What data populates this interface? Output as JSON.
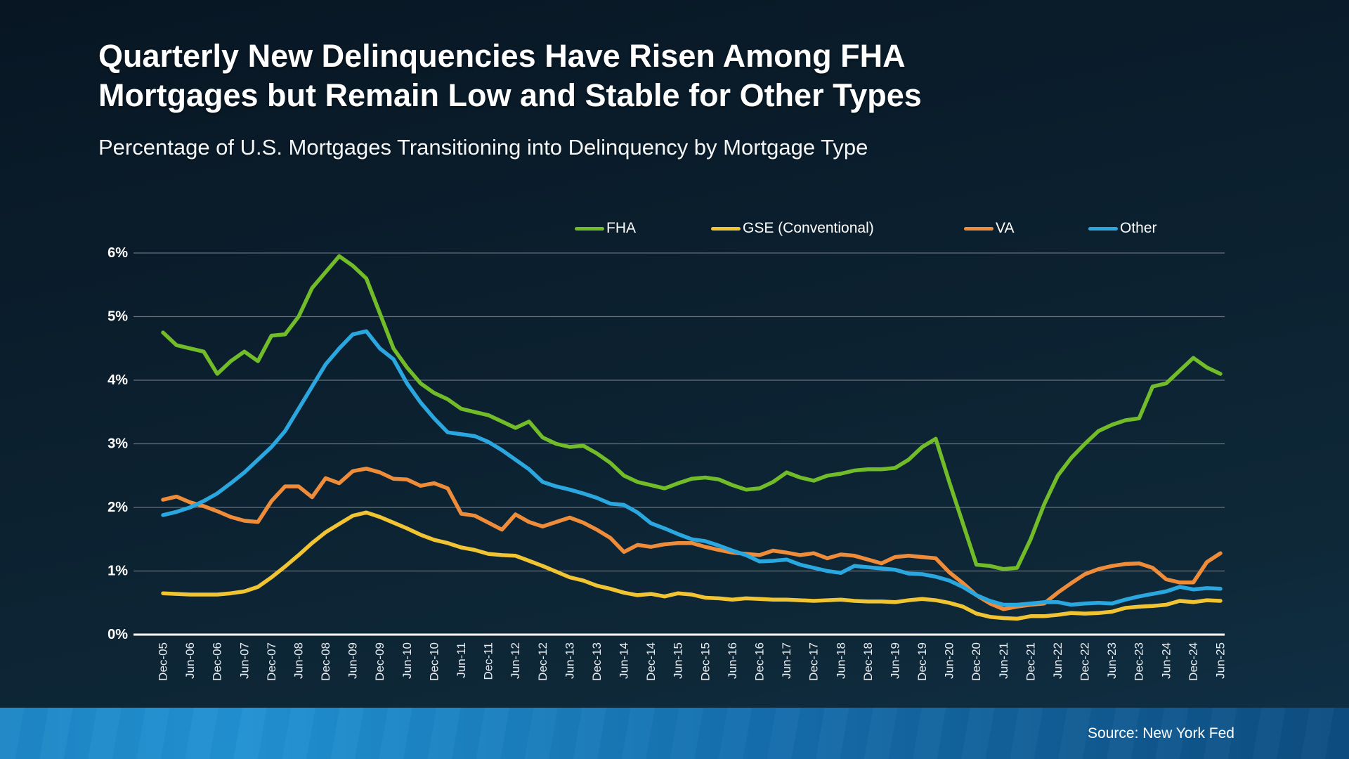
{
  "header": {
    "title_line1": "Quarterly New Delinquencies Have Risen Among FHA",
    "title_line2": "Mortgages but Remain Low and Stable for Other Types",
    "subtitle": "Percentage of U.S. Mortgages Transitioning into Delinquency by Mortgage Type"
  },
  "footer": {
    "source_label": "Source: New York Fed"
  },
  "colors": {
    "background_top": "#081623",
    "background_bottom": "#103047",
    "gridline": "#8b929b",
    "zero_axis": "#ffffff",
    "x_tick_text": "#e9edf1",
    "y_tick_text": "#ffffff",
    "footer_bar_left": "#2191d2",
    "footer_bar_right": "#0d4d80"
  },
  "chart_data": {
    "type": "line",
    "title": "Percentage of U.S. Mortgages Transitioning into Delinquency by Mortgage Type",
    "xlabel": "",
    "ylabel": "",
    "ylim": [
      0,
      6
    ],
    "y_ticks": [
      0,
      1,
      2,
      3,
      4,
      5,
      6
    ],
    "y_tick_suffix": "%",
    "grid": true,
    "legend_position": "top",
    "x_frequency": "quarterly",
    "x_start": "Dec-05",
    "x_end": "Jun-25",
    "x_tick_labels": [
      "Dec-05",
      "Jun-06",
      "Dec-06",
      "Jun-07",
      "Dec-07",
      "Jun-08",
      "Dec-08",
      "Jun-09",
      "Dec-09",
      "Jun-10",
      "Dec-10",
      "Jun-11",
      "Dec-11",
      "Jun-12",
      "Dec-12",
      "Jun-13",
      "Dec-13",
      "Jun-14",
      "Dec-14",
      "Jun-15",
      "Dec-15",
      "Jun-16",
      "Dec-16",
      "Jun-17",
      "Dec-17",
      "Jun-18",
      "Dec-18",
      "Jun-19",
      "Dec-19",
      "Jun-20",
      "Dec-20",
      "Jun-21",
      "Dec-21",
      "Jun-22",
      "Dec-22",
      "Jun-23",
      "Dec-23",
      "Jun-24",
      "Dec-24",
      "Jun-25"
    ],
    "series": [
      {
        "name": "FHA",
        "color": "#71bc28",
        "values": [
          4.75,
          4.55,
          4.5,
          4.45,
          4.1,
          4.3,
          4.45,
          4.3,
          4.7,
          4.72,
          5.0,
          5.45,
          5.7,
          5.95,
          5.8,
          5.6,
          5.05,
          4.5,
          4.2,
          3.95,
          3.8,
          3.7,
          3.55,
          3.5,
          3.45,
          3.35,
          3.25,
          3.35,
          3.1,
          3.0,
          2.95,
          2.97,
          2.85,
          2.7,
          2.5,
          2.4,
          2.35,
          2.3,
          2.38,
          2.45,
          2.47,
          2.44,
          2.35,
          2.28,
          2.3,
          2.4,
          2.55,
          2.47,
          2.42,
          2.5,
          2.53,
          2.58,
          2.6,
          2.6,
          2.62,
          2.75,
          2.95,
          3.08,
          2.4,
          1.75,
          1.1,
          1.08,
          1.03,
          1.05,
          1.5,
          2.05,
          2.5,
          2.78,
          3.0,
          3.2,
          3.3,
          3.37,
          3.4,
          3.9,
          3.95,
          4.15,
          4.35,
          4.2,
          4.1
        ]
      },
      {
        "name": "GSE (Conventional)",
        "color": "#f0c432",
        "values": [
          0.65,
          0.64,
          0.63,
          0.63,
          0.63,
          0.65,
          0.68,
          0.75,
          0.9,
          1.07,
          1.25,
          1.44,
          1.61,
          1.74,
          1.87,
          1.92,
          1.85,
          1.76,
          1.67,
          1.57,
          1.49,
          1.44,
          1.37,
          1.33,
          1.27,
          1.25,
          1.24,
          1.16,
          1.08,
          0.99,
          0.9,
          0.85,
          0.77,
          0.72,
          0.66,
          0.62,
          0.64,
          0.6,
          0.65,
          0.63,
          0.58,
          0.57,
          0.55,
          0.57,
          0.56,
          0.55,
          0.55,
          0.54,
          0.53,
          0.54,
          0.55,
          0.53,
          0.52,
          0.52,
          0.51,
          0.54,
          0.56,
          0.54,
          0.5,
          0.44,
          0.33,
          0.28,
          0.26,
          0.25,
          0.29,
          0.29,
          0.31,
          0.34,
          0.33,
          0.34,
          0.36,
          0.42,
          0.44,
          0.45,
          0.47,
          0.53,
          0.51,
          0.54,
          0.53
        ]
      },
      {
        "name": "VA",
        "color": "#ee8c3a",
        "values": [
          2.12,
          2.17,
          2.08,
          2.02,
          1.94,
          1.85,
          1.79,
          1.77,
          2.1,
          2.33,
          2.33,
          2.16,
          2.46,
          2.38,
          2.57,
          2.61,
          2.55,
          2.45,
          2.44,
          2.34,
          2.38,
          2.3,
          1.9,
          1.87,
          1.76,
          1.65,
          1.89,
          1.77,
          1.7,
          1.77,
          1.84,
          1.76,
          1.65,
          1.52,
          1.3,
          1.41,
          1.38,
          1.42,
          1.44,
          1.44,
          1.38,
          1.33,
          1.29,
          1.27,
          1.25,
          1.32,
          1.29,
          1.25,
          1.28,
          1.2,
          1.26,
          1.24,
          1.18,
          1.12,
          1.22,
          1.24,
          1.22,
          1.2,
          0.98,
          0.81,
          0.62,
          0.49,
          0.4,
          0.44,
          0.47,
          0.49,
          0.66,
          0.81,
          0.95,
          1.03,
          1.08,
          1.11,
          1.12,
          1.05,
          0.87,
          0.82,
          0.82,
          1.14,
          1.28
        ]
      },
      {
        "name": "Other",
        "color": "#2ba7e0",
        "values": [
          1.88,
          1.93,
          2.0,
          2.1,
          2.22,
          2.38,
          2.55,
          2.75,
          2.95,
          3.2,
          3.55,
          3.9,
          4.25,
          4.5,
          4.72,
          4.77,
          4.5,
          4.33,
          3.95,
          3.65,
          3.4,
          3.18,
          3.15,
          3.12,
          3.03,
          2.9,
          2.75,
          2.6,
          2.4,
          2.33,
          2.28,
          2.22,
          2.15,
          2.06,
          2.04,
          1.92,
          1.75,
          1.67,
          1.58,
          1.5,
          1.47,
          1.4,
          1.32,
          1.25,
          1.15,
          1.16,
          1.18,
          1.1,
          1.05,
          1.0,
          0.97,
          1.08,
          1.06,
          1.04,
          1.02,
          0.96,
          0.95,
          0.91,
          0.85,
          0.75,
          0.62,
          0.53,
          0.47,
          0.47,
          0.49,
          0.51,
          0.51,
          0.47,
          0.49,
          0.5,
          0.49,
          0.55,
          0.6,
          0.64,
          0.68,
          0.75,
          0.71,
          0.73,
          0.72
        ]
      }
    ]
  }
}
